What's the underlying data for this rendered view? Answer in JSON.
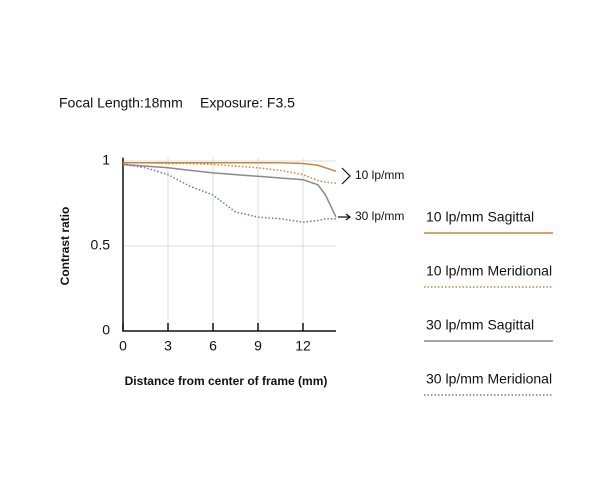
{
  "chart_data": {
    "type": "line",
    "header": {
      "focal_length": "Focal Length:18mm",
      "exposure": "Exposure: F3.5"
    },
    "x_label": "Distance from center of frame (mm)",
    "y_label": "Contrast ratio",
    "x": [
      0,
      1.5,
      3,
      4.5,
      6,
      7.5,
      9,
      10.5,
      12,
      13,
      13.5,
      14.2
    ],
    "xlim": [
      0,
      14.2
    ],
    "xticks": [
      0,
      3,
      6,
      9,
      12
    ],
    "ylim": [
      0,
      1.02
    ],
    "yticks": [
      0,
      {
        "value": 0.5,
        "label": "0.5"
      },
      1
    ],
    "grid": true,
    "series": [
      {
        "name": "10 lp/mm Sagittal",
        "color": "#c8873a",
        "dash": "solid",
        "values": [
          0.99,
          0.99,
          0.99,
          0.99,
          0.99,
          0.99,
          0.99,
          0.99,
          0.985,
          0.975,
          0.96,
          0.94
        ]
      },
      {
        "name": "10 lp/mm Meridional",
        "color": "#c8873a",
        "dash": "dotted",
        "values": [
          0.99,
          0.99,
          0.985,
          0.985,
          0.98,
          0.97,
          0.96,
          0.945,
          0.92,
          0.885,
          0.875,
          0.87
        ]
      },
      {
        "name": "30 lp/mm Sagittal",
        "color": "#8a8a8a",
        "dash": "solid",
        "values": [
          0.98,
          0.97,
          0.96,
          0.945,
          0.93,
          0.92,
          0.91,
          0.9,
          0.89,
          0.86,
          0.8,
          0.67
        ]
      },
      {
        "name": "30 lp/mm Meridional",
        "color": "#6e7a90",
        "dash": "dotted",
        "values": [
          0.98,
          0.96,
          0.92,
          0.85,
          0.8,
          0.7,
          0.67,
          0.66,
          0.64,
          0.65,
          0.66,
          0.66
        ]
      }
    ],
    "annotations": [
      "10 lp/mm",
      "30 lp/mm"
    ]
  }
}
